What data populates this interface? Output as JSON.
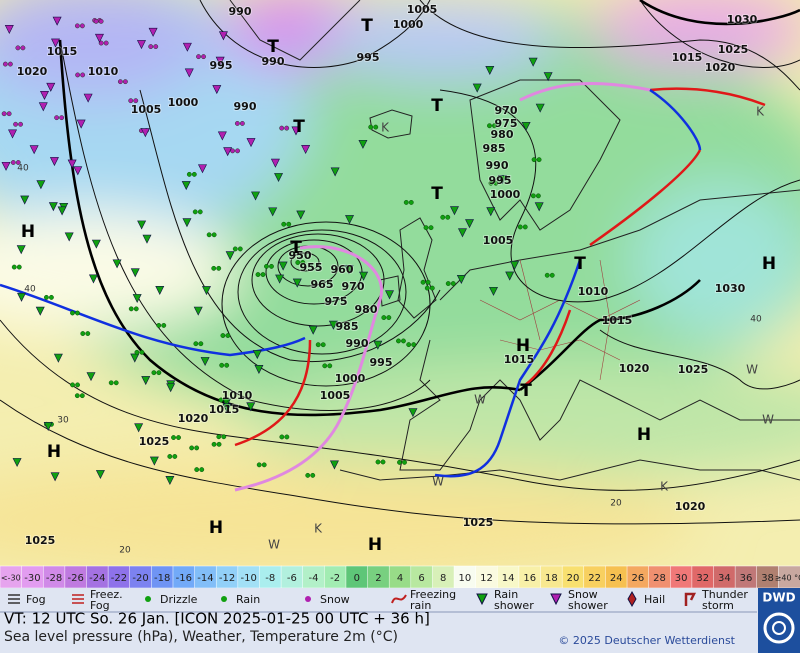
{
  "pressure_labels": [
    "990",
    "1005",
    "1030",
    "1015",
    "1020",
    "1010",
    "995",
    "990",
    "995",
    "1000",
    "1025",
    "1015",
    "1020",
    "1005",
    "1000",
    "990",
    "970",
    "975",
    "980",
    "985",
    "990",
    "995",
    "1000",
    "1005",
    "950",
    "955",
    "960",
    "965",
    "970",
    "975",
    "980",
    "985",
    "990",
    "995",
    "1000",
    "1010",
    "1015",
    "1005",
    "1020",
    "1025",
    "1010",
    "1015",
    "1030",
    "1015",
    "1020",
    "1025",
    "1025",
    "1020",
    "1025"
  ],
  "pressure_centers": [
    "T",
    "T",
    "T",
    "T",
    "T",
    "T",
    "T",
    "T",
    "H",
    "H",
    "H",
    "H",
    "H",
    "H",
    "H",
    "K",
    "K",
    "K",
    "K",
    "W",
    "W",
    "W",
    "W",
    "W"
  ],
  "temperature_labels": [
    "40",
    "40",
    "40",
    "30",
    "20",
    "20"
  ],
  "temperature_scale": {
    "labels": [
      "<-30",
      "-30",
      "-28",
      "-26",
      "-24",
      "-22",
      "-20",
      "-18",
      "-16",
      "-14",
      "-12",
      "-10",
      "-8",
      "-6",
      "-4",
      "-2",
      "0",
      "2",
      "4",
      "6",
      "8",
      "10",
      "12",
      "14",
      "16",
      "18",
      "20",
      "22",
      "24",
      "26",
      "28",
      "30",
      "32",
      "34",
      "36",
      "38",
      "≥40 °C"
    ],
    "colors": [
      "#e6a4ee",
      "#e29cf0",
      "#d08ae8",
      "#bf7ae0",
      "#a472e2",
      "#8e72ea",
      "#7c82f0",
      "#6f94f4",
      "#72aaf8",
      "#82bef8",
      "#92d0f8",
      "#a2e0f6",
      "#aaeeee",
      "#b2f0de",
      "#b2f0c8",
      "#a2ecb2",
      "#5ec678",
      "#78d080",
      "#98dc88",
      "#b8e8a0",
      "#d8f0b8",
      "#f8fcf0",
      "#fafae0",
      "#f8f8c8",
      "#f8f0a8",
      "#f8e890",
      "#f8e070",
      "#f8d060",
      "#f6c050",
      "#f4a860",
      "#f09070",
      "#f07878",
      "#e06868",
      "#d06a6a",
      "#c07878",
      "#b08070",
      "#c8a8a0"
    ]
  },
  "weather_legend": [
    "Fog",
    "Freez. Fog",
    "Drizzle",
    "Rain",
    "Snow",
    "Freezing rain",
    "Rain shower",
    "Snow shower",
    "Hail",
    "Thunder storm"
  ],
  "footer": {
    "valid_time": "VT: 12 UTC So.  26 Jan. [ICON 2025-01-25  00 UTC + 36 h]",
    "description": "Sea level pressure (hPa), Weather, Temperature 2m (°C)",
    "copyright": "© 2025 Deutscher Wetterdienst",
    "logo": "DWD"
  }
}
